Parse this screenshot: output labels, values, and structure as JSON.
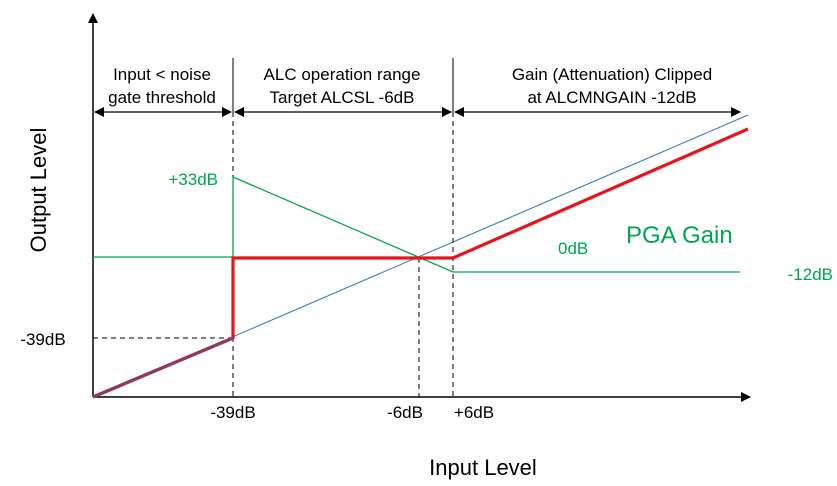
{
  "diagram": {
    "regions": [
      {
        "line1": "Input < noise",
        "line2": "gate threshold"
      },
      {
        "line1": "ALC operation range",
        "line2": "Target ALCSL -6dB"
      },
      {
        "line1": "Gain (Attenuation) Clipped",
        "line2": "at ALCMNGAIN -12dB"
      }
    ],
    "y_axis_label": "Output Level",
    "x_axis_label": "Input Level",
    "y_tick": "-39dB",
    "x_ticks": [
      "-39dB",
      "-6dB",
      "+6dB"
    ],
    "gain_labels": {
      "max": "+33dB",
      "zero": "0dB",
      "min": "-12dB",
      "curve_name": "PGA Gain"
    },
    "colors": {
      "output_curve": "#e8141b",
      "pga_gain_curve": "#00a651",
      "reference_line": "#2e75b6",
      "text_green": "#00a651",
      "axis": "#000000"
    }
  }
}
